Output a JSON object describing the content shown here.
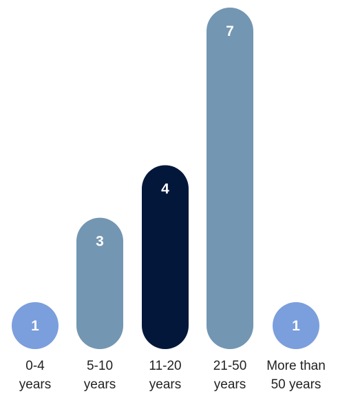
{
  "chart_data": {
    "type": "bar",
    "categories": [
      [
        "0-4",
        "years"
      ],
      [
        "5-10",
        "years"
      ],
      [
        "11-20",
        "years"
      ],
      [
        "21-50",
        "years"
      ],
      [
        "More than",
        "50 years"
      ]
    ],
    "values": [
      1,
      3,
      4,
      7,
      1
    ],
    "bar_colors": [
      "#7b9edd",
      "#7396b2",
      "#03173a",
      "#7396b2",
      "#7b9edd"
    ],
    "value_label_color": "#ffffff",
    "ylim": [
      0,
      7
    ],
    "title": "",
    "xlabel": "",
    "ylabel": "",
    "grid": false,
    "legend": "none"
  }
}
